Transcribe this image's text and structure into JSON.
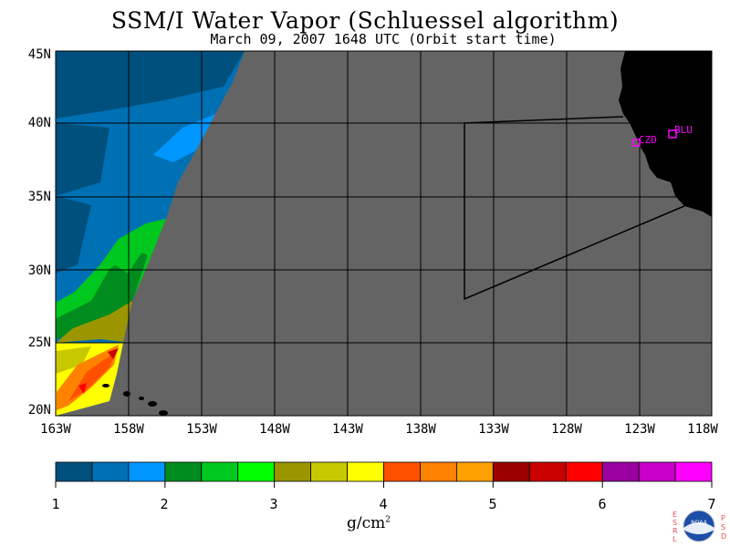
{
  "title": "SSM/I Water Vapor (Schluessel algorithm)",
  "subtitle": "March 09, 2007  1648 UTC  (Orbit start time)",
  "map": {
    "lat_labels": [
      "45N",
      "40N",
      "35N",
      "30N",
      "25N",
      "20N"
    ],
    "lon_labels": [
      "163W",
      "158W",
      "153W",
      "148W",
      "143W",
      "138W",
      "133W",
      "128W",
      "123W",
      "118W"
    ],
    "stations": [
      {
        "label": "BLU"
      },
      {
        "label": "CZD"
      }
    ],
    "colors": {
      "no_data": "#646464",
      "land": "#000000",
      "station": "#ff00ff"
    }
  },
  "colorbar": {
    "labels": [
      "1",
      "2",
      "3",
      "4",
      "5",
      "6",
      "7"
    ],
    "colors": [
      "#00507d",
      "#0070b4",
      "#0096ff",
      "#008c1e",
      "#00c81e",
      "#00ff00",
      "#9b9600",
      "#c8c800",
      "#ffff00",
      "#ff5000",
      "#ff8200",
      "#ffa000",
      "#9b0000",
      "#c80000",
      "#ff0000",
      "#9b00a0",
      "#c800c8",
      "#ff00ff"
    ],
    "units_base": "g/cm",
    "units_exp": "2"
  },
  "logo": {
    "left_text": "ESRL",
    "right_text": "PSD",
    "center_text": "NOAA"
  }
}
